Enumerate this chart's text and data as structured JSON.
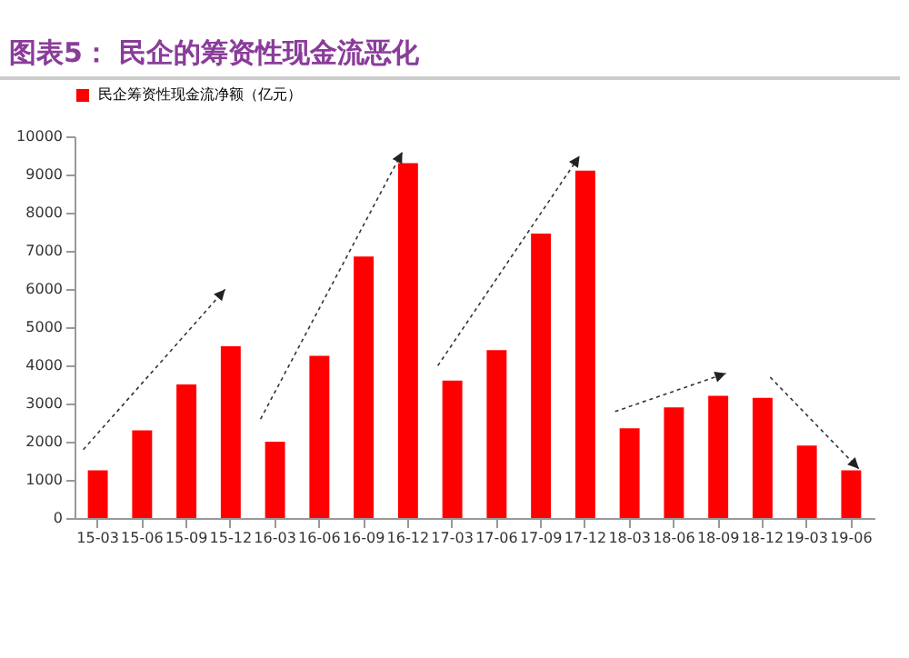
{
  "chart_data": {
    "type": "bar",
    "title": "图表5：  民企的筹资性现金流恶化",
    "categories": [
      "15-03",
      "15-06",
      "15-09",
      "15-12",
      "16-03",
      "16-06",
      "16-09",
      "16-12",
      "17-03",
      "17-06",
      "17-09",
      "17-12",
      "18-03",
      "18-06",
      "18-09",
      "18-12",
      "19-03",
      "19-06"
    ],
    "series": [
      {
        "name": "民企筹资性现金流净额（亿元）",
        "color": "#ff0000",
        "values": [
          1250,
          2300,
          3500,
          4500,
          2000,
          4250,
          6850,
          9300,
          3600,
          4400,
          7450,
          9100,
          2350,
          2900,
          3200,
          3150,
          1900,
          1250
        ]
      }
    ],
    "ylim": [
      0,
      10000
    ],
    "yticks": [
      0,
      1000,
      2000,
      3000,
      4000,
      5000,
      6000,
      7000,
      8000,
      9000,
      10000
    ],
    "grid": false,
    "legend": "top"
  }
}
